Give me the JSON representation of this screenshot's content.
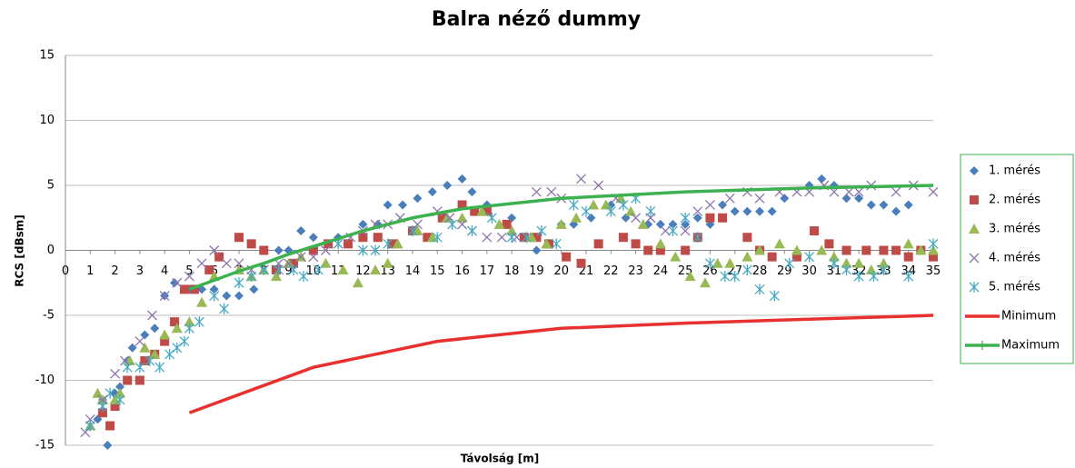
{
  "chart_data": {
    "type": "scatter",
    "title": "Balra néző dummy",
    "x_label": "Távolság  [m]",
    "y_label": "RCS [dBsm]",
    "xlim": [
      0,
      35
    ],
    "xticks": [
      0,
      1,
      2,
      3,
      4,
      5,
      6,
      7,
      8,
      9,
      10,
      11,
      12,
      13,
      14,
      15,
      16,
      17,
      18,
      19,
      20,
      21,
      22,
      23,
      24,
      25,
      26,
      27,
      28,
      29,
      30,
      31,
      32,
      33,
      34,
      35
    ],
    "ylim": [
      -15,
      15
    ],
    "yticks": [
      -15,
      -10,
      -5,
      0,
      5,
      10,
      15
    ],
    "grid": true,
    "legend": "right",
    "series": [
      {
        "name": "1. mérés",
        "color": "#4a7ebb",
        "marker": "diamond",
        "x": [
          1.3,
          1.5,
          1.7,
          2,
          2.2,
          2.5,
          2.7,
          3.2,
          3.6,
          4,
          4.4,
          5,
          5.5,
          6,
          6.5,
          7,
          7.6,
          8,
          8.6,
          9,
          9.5,
          10,
          11,
          12,
          12.6,
          13,
          13.6,
          14.2,
          14.8,
          15.4,
          16,
          16.4,
          17,
          18,
          19,
          20,
          20.5,
          21.2,
          22,
          22.6,
          23.5,
          24,
          24.5,
          25,
          25.5,
          26,
          26.5,
          27,
          27.5,
          28,
          28.5,
          29,
          30,
          30.5,
          31,
          31.5,
          32,
          32.5,
          33,
          33.5,
          34
        ],
        "values": [
          -13,
          -11.5,
          -15,
          -11,
          -10.5,
          -8.5,
          -7.5,
          -6.5,
          -6,
          -3.5,
          -2.5,
          -3,
          -3,
          -3,
          -3.5,
          -3.5,
          -3,
          0,
          0,
          0,
          1.5,
          1,
          1,
          2,
          2,
          3.5,
          3.5,
          4,
          4.5,
          5,
          5.5,
          4.5,
          3.5,
          2.5,
          0,
          2,
          2,
          2.5,
          3.5,
          2.5,
          2,
          2,
          2,
          2,
          2.5,
          2,
          3.5,
          3,
          3,
          3,
          3,
          4,
          5,
          5.5,
          5,
          4,
          4,
          3.5,
          3.5,
          3,
          3.5
        ]
      },
      {
        "name": "2. mérés",
        "color": "#be4b48",
        "marker": "square",
        "x": [
          1.5,
          1.8,
          2,
          2.5,
          3,
          3.2,
          3.6,
          4,
          4.4,
          4.8,
          5.2,
          5.8,
          6.2,
          7,
          7.5,
          8,
          8.5,
          9.2,
          10,
          10.6,
          11.4,
          12,
          12.6,
          13.2,
          14,
          14.6,
          15.2,
          16,
          16.5,
          17,
          17.8,
          18.5,
          19,
          19.5,
          20.2,
          20.8,
          21.5,
          22.5,
          23,
          23.5,
          24,
          25,
          25.5,
          26,
          26.5,
          27.5,
          28,
          28.5,
          29.5,
          30.2,
          30.8,
          31.5,
          32.3,
          33,
          33.5,
          34,
          34.5,
          35
        ],
        "values": [
          -12.5,
          -13.5,
          -12,
          -10,
          -10,
          -8.5,
          -8,
          -7,
          -5.5,
          -3,
          -3,
          -1.5,
          -0.5,
          1,
          0.5,
          0,
          -1.5,
          -1,
          0,
          0.5,
          0.5,
          1,
          1,
          0.5,
          1.5,
          1,
          2.5,
          3.5,
          3,
          3,
          2,
          1,
          1,
          0.5,
          -0.5,
          -1,
          0.5,
          1,
          0.5,
          0,
          0,
          0,
          1,
          2.5,
          2.5,
          1,
          0,
          -0.5,
          -0.5,
          1.5,
          0.5,
          0,
          0,
          0,
          0,
          -0.5,
          0,
          -0.5
        ]
      },
      {
        "name": "3. mérés",
        "color": "#98b954",
        "marker": "triangle",
        "x": [
          1,
          1.3,
          1.5,
          2,
          2.2,
          2.6,
          3.2,
          3.6,
          4,
          4.5,
          5,
          5.5,
          6,
          7,
          7.5,
          8,
          8.5,
          9,
          9.5,
          10.5,
          11.2,
          11.8,
          12.5,
          13,
          13.4,
          14.2,
          14.8,
          15.4,
          16,
          16.8,
          17.5,
          18,
          18.8,
          19.4,
          20,
          20.6,
          21.3,
          21.8,
          22.4,
          22.8,
          23.3,
          24,
          24.6,
          25.2,
          25.8,
          26.3,
          26.8,
          27.5,
          28,
          28.8,
          29.5,
          30.5,
          31,
          31.5,
          32,
          32.5,
          33,
          34,
          34.5,
          35
        ],
        "values": [
          -13.5,
          -11,
          -11.5,
          -11.5,
          -11,
          -8.5,
          -7.5,
          -8,
          -6.5,
          -6,
          -5.5,
          -4,
          -2,
          -1.5,
          -2,
          -1.5,
          -2,
          -1,
          -0.5,
          -1,
          -1.5,
          -2.5,
          -1.5,
          -1,
          0.5,
          1.5,
          1,
          2.5,
          2.5,
          3,
          2,
          1.5,
          1,
          0.5,
          2,
          2.5,
          3.5,
          3.5,
          4,
          3,
          2,
          0.5,
          -0.5,
          -2,
          -2.5,
          -1,
          -1,
          -0.5,
          0,
          0.5,
          0,
          0,
          -0.5,
          -1,
          -1,
          -1.5,
          -1,
          0.5,
          0,
          0
        ]
      },
      {
        "name": "4. mérés",
        "color": "#8b74ad",
        "marker": "x",
        "x": [
          0.8,
          1,
          1.5,
          2,
          2.4,
          3,
          3.5,
          4,
          4.5,
          5,
          5.5,
          6,
          6.5,
          7,
          7.5,
          8,
          8.6,
          9,
          9.5,
          10,
          10.5,
          11,
          11.5,
          12,
          12.5,
          13,
          13.5,
          14.2,
          15,
          15.5,
          16,
          16.4,
          17,
          17.6,
          18.2,
          19,
          19.6,
          20,
          20.8,
          21.5,
          22.2,
          23,
          23.6,
          24.2,
          25,
          25.5,
          26,
          26.8,
          27.5,
          28,
          28.8,
          29.5,
          30,
          30.6,
          31,
          31.6,
          32,
          32.5,
          33.5,
          34.2,
          35
        ],
        "values": [
          -14,
          -13,
          -11.5,
          -9.5,
          -8.5,
          -7,
          -5,
          -3.5,
          -2.5,
          -2,
          -1,
          0,
          -1,
          -1,
          -1.5,
          -1.5,
          -1,
          -1,
          -0.5,
          -0.5,
          0,
          0.5,
          1,
          1.5,
          2,
          2,
          2.5,
          2,
          3,
          2.5,
          2,
          1.5,
          1,
          1,
          1,
          4.5,
          4.5,
          4,
          5.5,
          5,
          4,
          2.5,
          2.5,
          1.5,
          1.5,
          3,
          3.5,
          4,
          4.5,
          4,
          4.5,
          4.5,
          4.5,
          5,
          4.5,
          4.5,
          4.5,
          5,
          4.5,
          5,
          4.5
        ]
      },
      {
        "name": "5. mérés",
        "color": "#46aac5",
        "marker": "star",
        "x": [
          1,
          1.5,
          1.8,
          2.2,
          2.5,
          3,
          3.4,
          3.8,
          4.2,
          4.5,
          4.8,
          5,
          5.4,
          6,
          6.4,
          7,
          7.5,
          8,
          8.6,
          9.2,
          9.6,
          10.2,
          11,
          12,
          12.5,
          13,
          14,
          15,
          15.6,
          16.4,
          17.2,
          18,
          18.6,
          19.2,
          19.8,
          20.5,
          21,
          22,
          22.5,
          23,
          23.6,
          24.5,
          25,
          25.5,
          26,
          26.6,
          27,
          27.5,
          28,
          28.6,
          29.2,
          30,
          31,
          31.5,
          32,
          32.6,
          33,
          34,
          35
        ],
        "values": [
          -13.5,
          -12,
          -11,
          -11.5,
          -9,
          -9,
          -8.5,
          -9,
          -8,
          -7.5,
          -7,
          -6,
          -5.5,
          -3.5,
          -4.5,
          -2.5,
          -2,
          -1.5,
          -1.5,
          -1.5,
          -2,
          -1.5,
          0.5,
          0,
          0,
          0.5,
          1.5,
          1,
          2,
          1.5,
          2.5,
          1,
          1,
          1.5,
          0.5,
          3.5,
          3,
          3,
          3.5,
          4,
          3,
          1.5,
          2.5,
          1,
          -1,
          -2,
          -2,
          -1.5,
          -3,
          -3.5,
          -1,
          -0.5,
          -1,
          -1.5,
          -2,
          -2,
          -1.5,
          -2,
          0.5
        ]
      },
      {
        "name": "Minimum",
        "color": "#e8312f",
        "line": true,
        "x": [
          5,
          10,
          15,
          20,
          25,
          30,
          35
        ],
        "values": [
          -12.5,
          -9,
          -7,
          -6,
          -5.6,
          -5.3,
          -5
        ]
      },
      {
        "name": "Maximum",
        "color": "#3cb14f",
        "line": true,
        "marker": "plus",
        "x": [
          5,
          6,
          7,
          8,
          9,
          10,
          12,
          14,
          16,
          18,
          20,
          25,
          30,
          35
        ],
        "values": [
          -3,
          -2.3,
          -1.6,
          -1,
          -0.3,
          0.3,
          1.5,
          2.5,
          3.2,
          3.6,
          4,
          4.5,
          4.8,
          5
        ]
      }
    ]
  }
}
